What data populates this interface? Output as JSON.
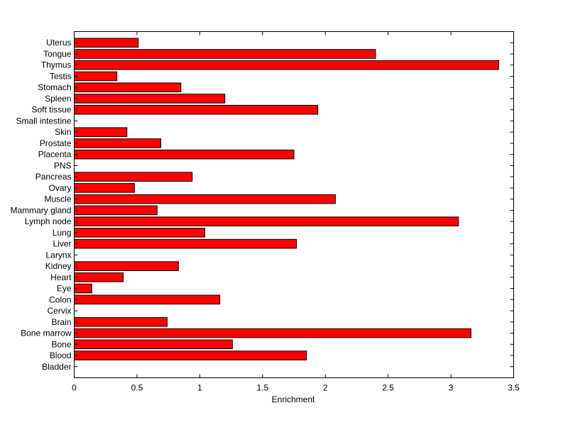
{
  "chart_data": {
    "type": "bar",
    "orientation": "horizontal",
    "title": "",
    "xlabel": "Enrichment",
    "ylabel": "",
    "xlim": [
      0,
      3.5
    ],
    "xticks": [
      "0",
      "0.5",
      "1",
      "1.5",
      "2",
      "2.5",
      "3",
      "3.5"
    ],
    "grid": false,
    "legend": "none",
    "bar_color": "#ff0000",
    "edge_color": "#000000",
    "categories": [
      "Bladder",
      "Blood",
      "Bone",
      "Bone marrow",
      "Brain",
      "Cervix",
      "Colon",
      "Eye",
      "Heart",
      "Kidney",
      "Larynx",
      "Liver",
      "Lung",
      "Lymph node",
      "Mammary gland",
      "Muscle",
      "Ovary",
      "Pancreas",
      "PNS",
      "Placenta",
      "Prostate",
      "Skin",
      "Small intestine",
      "Soft tissue",
      "Spleen",
      "Stomach",
      "Testis",
      "Thymus",
      "Tongue",
      "Uterus"
    ],
    "values": [
      0,
      1.85,
      1.26,
      3.16,
      0.74,
      0,
      1.16,
      0.14,
      0.39,
      0.83,
      0,
      1.77,
      1.04,
      3.06,
      0.66,
      2.08,
      0.48,
      0.94,
      0,
      1.75,
      0.69,
      0.42,
      0,
      1.94,
      1.2,
      0.85,
      0.34,
      3.38,
      2.4,
      0.51
    ]
  }
}
